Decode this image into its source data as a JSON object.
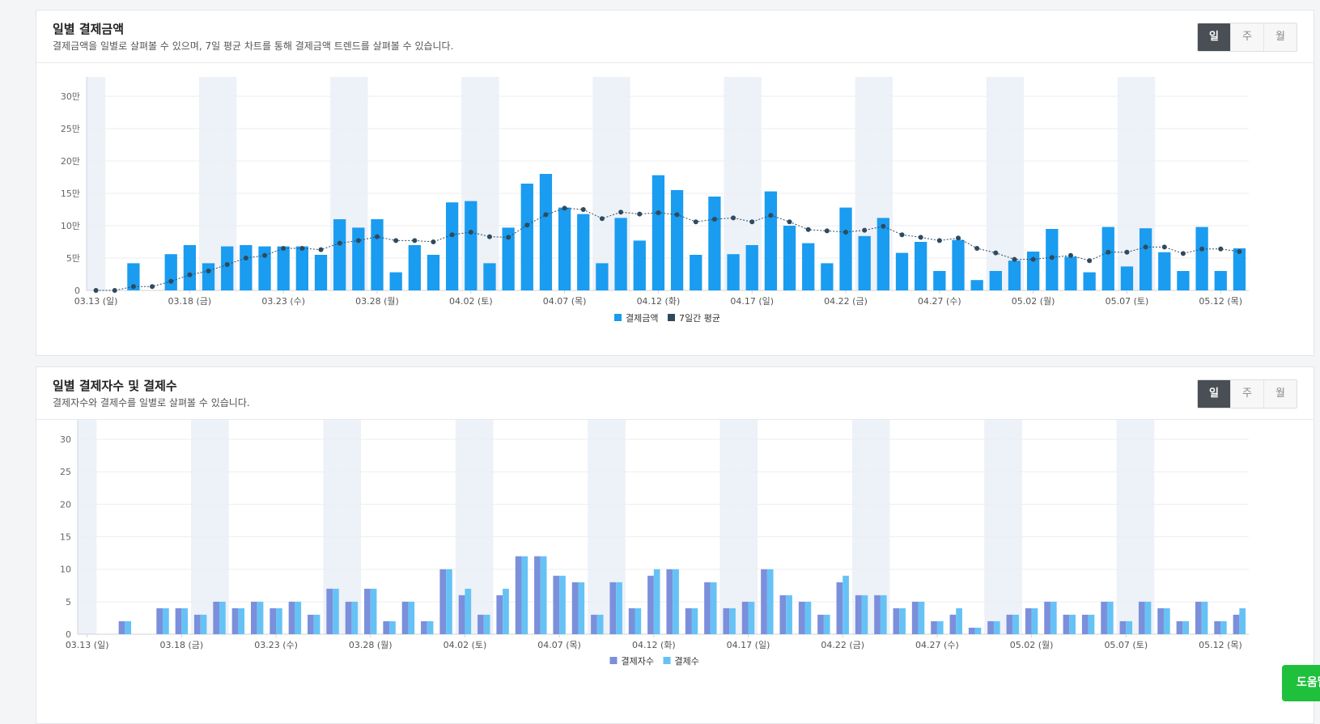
{
  "panels": [
    {
      "title": "일별 결제금액",
      "description": "결제금액을 일별로 살펴볼 수 있으며, 7일 평균 차트를 통해 결제금액 트렌드를 살펴볼 수 있습니다.",
      "tabs": [
        "일",
        "주",
        "월"
      ],
      "active_tab": "일"
    },
    {
      "title": "일별 결제자수 및 결제수",
      "description": "결제자수와 결제수를 일별로 살펴볼 수 있습니다.",
      "tabs": [
        "일",
        "주",
        "월"
      ],
      "active_tab": "일"
    }
  ],
  "help_button": "도움말",
  "chart_data": [
    {
      "type": "bar",
      "x_start": "03.13",
      "x_labels": [
        "03.13 (일)",
        "03.18 (금)",
        "03.23 (수)",
        "03.28 (월)",
        "04.02 (토)",
        "04.07 (목)",
        "04.12 (화)",
        "04.17 (일)",
        "04.22 (금)",
        "04.27 (수)",
        "05.02 (월)",
        "05.07 (토)",
        "05.12 (목)"
      ],
      "y_ticks": [
        "0",
        "5만",
        "10만",
        "15만",
        "20만",
        "25만",
        "30만"
      ],
      "ylim": [
        0,
        330000
      ],
      "weekend_days": [
        "03.13",
        "03.19",
        "03.20",
        "03.26",
        "03.27",
        "04.02",
        "04.03",
        "04.09",
        "04.10",
        "04.16",
        "04.17",
        "04.23",
        "04.24",
        "04.30",
        "05.01",
        "05.07",
        "05.08"
      ],
      "series": [
        {
          "name": "결제금액",
          "type": "bar",
          "color": "#1a9cf0",
          "values": [
            0,
            0,
            42000,
            0,
            56000,
            70000,
            42000,
            68000,
            70000,
            68000,
            68000,
            68000,
            55000,
            110000,
            97000,
            110000,
            28000,
            70000,
            55000,
            136000,
            138000,
            42000,
            97000,
            165000,
            180000,
            128000,
            118000,
            42000,
            112000,
            77000,
            178000,
            155000,
            55000,
            145000,
            56000,
            70000,
            153000,
            100000,
            73000,
            42000,
            128000,
            84000,
            112000,
            58000,
            75000,
            30000,
            78000,
            16000,
            30000,
            46000,
            60000,
            95000,
            52000,
            28000,
            98000,
            37000,
            96000,
            59000,
            30000,
            98000,
            30000,
            65000
          ]
        },
        {
          "name": "7일간 평균",
          "type": "line",
          "color": "#2f4a5e",
          "values": [
            0,
            0,
            6000,
            6000,
            14000,
            24000,
            30000,
            40000,
            50000,
            54000,
            65000,
            65000,
            63000,
            73000,
            77000,
            83000,
            77000,
            77000,
            75000,
            86000,
            90000,
            83000,
            82000,
            101000,
            117000,
            127000,
            125000,
            111000,
            121000,
            118000,
            120000,
            117000,
            106000,
            110000,
            112000,
            106000,
            116000,
            106000,
            94000,
            92000,
            90000,
            93000,
            99000,
            86000,
            82000,
            77000,
            81000,
            65000,
            58000,
            48000,
            48000,
            51000,
            54000,
            46000,
            59000,
            59000,
            67000,
            67000,
            57000,
            64000,
            64000,
            60000
          ]
        }
      ]
    },
    {
      "type": "bar",
      "x_start": "03.13",
      "x_labels": [
        "03.13 (일)",
        "03.18 (금)",
        "03.23 (수)",
        "03.28 (월)",
        "04.02 (토)",
        "04.07 (목)",
        "04.12 (화)",
        "04.17 (일)",
        "04.22 (금)",
        "04.27 (수)",
        "05.02 (월)",
        "05.07 (토)",
        "05.12 (목)"
      ],
      "y_ticks": [
        "0",
        "5",
        "10",
        "15",
        "20",
        "25",
        "30"
      ],
      "ylim": [
        0,
        33
      ],
      "weekend_days": [
        "03.13",
        "03.19",
        "03.20",
        "03.26",
        "03.27",
        "04.02",
        "04.03",
        "04.09",
        "04.10",
        "04.16",
        "04.17",
        "04.23",
        "04.24",
        "04.30",
        "05.01",
        "05.07",
        "05.08"
      ],
      "series": [
        {
          "name": "결제자수",
          "type": "bar",
          "color": "#7b8fdb",
          "values": [
            0,
            0,
            2,
            0,
            4,
            4,
            3,
            5,
            4,
            5,
            4,
            5,
            3,
            7,
            5,
            7,
            2,
            5,
            2,
            10,
            6,
            3,
            6,
            12,
            12,
            9,
            8,
            3,
            8,
            4,
            9,
            10,
            4,
            8,
            4,
            5,
            10,
            6,
            5,
            3,
            8,
            6,
            6,
            4,
            5,
            2,
            3,
            1,
            2,
            3,
            4,
            5,
            3,
            3,
            5,
            2,
            5,
            4,
            2,
            5,
            2,
            3
          ]
        },
        {
          "name": "결제수",
          "type": "bar",
          "color": "#66c2f5",
          "values": [
            0,
            0,
            2,
            0,
            4,
            4,
            3,
            5,
            4,
            5,
            4,
            5,
            3,
            7,
            5,
            7,
            2,
            5,
            2,
            10,
            7,
            3,
            7,
            12,
            12,
            9,
            8,
            3,
            8,
            4,
            10,
            10,
            4,
            8,
            4,
            5,
            10,
            6,
            5,
            3,
            9,
            6,
            6,
            4,
            5,
            2,
            4,
            1,
            2,
            3,
            4,
            5,
            3,
            3,
            5,
            2,
            5,
            4,
            2,
            5,
            2,
            4
          ]
        }
      ]
    }
  ]
}
